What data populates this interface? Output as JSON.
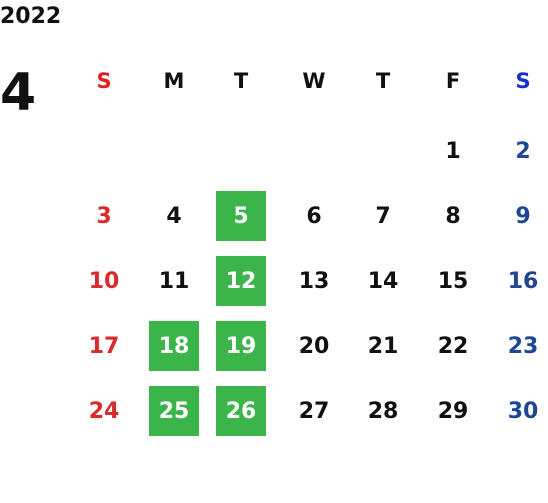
{
  "calendar": {
    "year": "2022",
    "month": "4",
    "weekdays": [
      "S",
      "M",
      "T",
      "W",
      "T",
      "F",
      "S"
    ],
    "weeks": [
      [
        "",
        "",
        "",
        "",
        "",
        "1",
        "2"
      ],
      [
        "3",
        "4",
        "5",
        "6",
        "7",
        "8",
        "9"
      ],
      [
        "10",
        "11",
        "12",
        "13",
        "14",
        "15",
        "16"
      ],
      [
        "17",
        "18",
        "19",
        "20",
        "21",
        "22",
        "23"
      ],
      [
        "24",
        "25",
        "26",
        "27",
        "28",
        "29",
        "30"
      ]
    ],
    "highlighted_days": [
      "5",
      "12",
      "18",
      "19",
      "25",
      "26"
    ]
  },
  "colors": {
    "text": "#111111",
    "sunday_header": "#e02020",
    "saturday_header": "#1a2fd0",
    "sunday": "#d92b2b",
    "saturday": "#1f4596",
    "highlight": "#3bb54a"
  }
}
